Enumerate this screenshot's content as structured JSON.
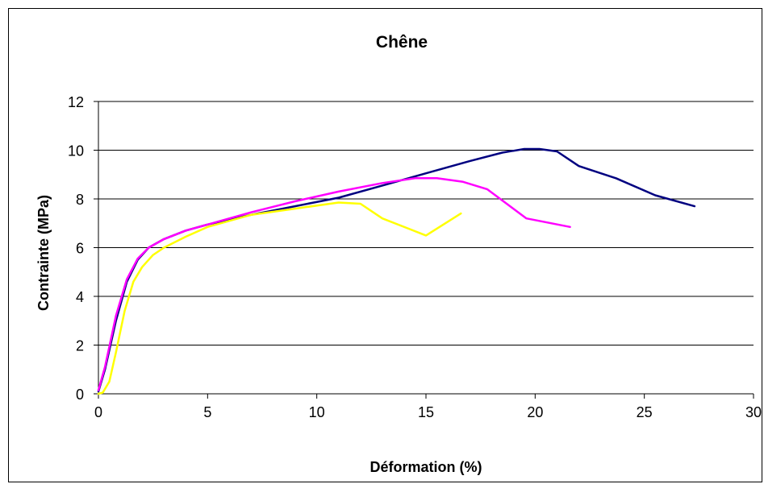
{
  "chart_data": {
    "type": "line",
    "title": "Chêne",
    "xlabel": "Déformation (%)",
    "ylabel": "Contrainte (MPa)",
    "xlim": [
      0,
      30
    ],
    "ylim": [
      0,
      12
    ],
    "xticks": [
      "0",
      "5",
      "10",
      "15",
      "20",
      "25",
      "30"
    ],
    "yticks": [
      "0",
      "2",
      "4",
      "6",
      "8",
      "10",
      "12"
    ],
    "grid": "horizontal",
    "legend": "none",
    "series": [
      {
        "color": "#000080",
        "x": [
          0,
          0.3,
          0.8,
          1.3,
          1.8,
          2.3,
          3,
          4,
          5,
          7,
          9,
          11,
          13,
          15,
          17,
          18.5,
          19.5,
          20.2,
          21,
          22,
          23.7,
          25.5,
          27.3
        ],
        "y": [
          0.1,
          1.0,
          3.0,
          4.6,
          5.5,
          6.0,
          6.35,
          6.7,
          6.95,
          7.35,
          7.7,
          8.05,
          8.55,
          9.05,
          9.55,
          9.9,
          10.05,
          10.05,
          9.95,
          9.35,
          8.85,
          8.15,
          7.7
        ]
      },
      {
        "color": "#FF00FF",
        "x": [
          0,
          0.3,
          0.8,
          1.3,
          1.8,
          2.3,
          3,
          4,
          5,
          7,
          9,
          11,
          13,
          14.5,
          15.5,
          16.7,
          17.8,
          19.6,
          21.6
        ],
        "y": [
          0.15,
          1.1,
          3.2,
          4.7,
          5.55,
          6.0,
          6.35,
          6.7,
          6.95,
          7.45,
          7.9,
          8.3,
          8.65,
          8.85,
          8.85,
          8.7,
          8.4,
          7.2,
          6.85
        ]
      },
      {
        "color": "#FFFF00",
        "x": [
          0,
          0.2,
          0.5,
          0.8,
          1.2,
          1.6,
          2.0,
          2.5,
          3,
          4,
          5,
          7,
          9,
          11,
          12,
          13,
          15,
          16.6
        ],
        "y": [
          0,
          0.05,
          0.5,
          1.7,
          3.4,
          4.6,
          5.2,
          5.7,
          6.0,
          6.45,
          6.85,
          7.35,
          7.6,
          7.85,
          7.8,
          7.2,
          6.5,
          7.4
        ]
      }
    ]
  }
}
